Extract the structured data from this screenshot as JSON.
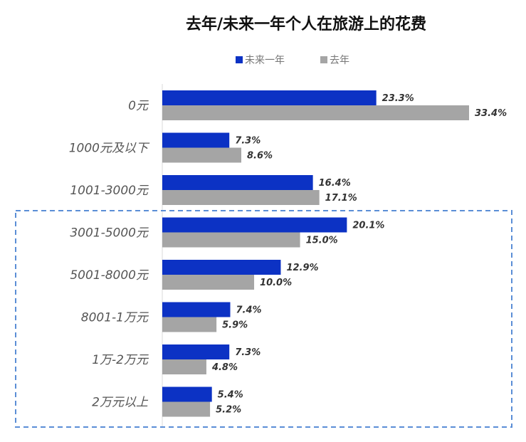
{
  "chart_data": {
    "type": "bar",
    "orientation": "horizontal",
    "title": "去年/未来一年个人在旅游上的花费",
    "categories": [
      "0元",
      "1000元及以下",
      "1001-3000元",
      "3001-5000元",
      "5001-8000元",
      "8001-1万元",
      "1万-2万元",
      "2万元以上"
    ],
    "series": [
      {
        "name": "未来一年",
        "color": "#0c32c4",
        "values": [
          23.3,
          7.3,
          16.4,
          20.1,
          12.9,
          7.4,
          7.3,
          5.4
        ],
        "labels": [
          "23.3%",
          "7.3%",
          "16.4%",
          "20.1%",
          "12.9%",
          "7.4%",
          "7.3%",
          "5.4%"
        ]
      },
      {
        "name": "去年",
        "color": "#a5a5a5",
        "values": [
          33.4,
          8.6,
          17.1,
          15.0,
          10.0,
          5.9,
          4.8,
          5.2
        ],
        "labels": [
          "33.4%",
          "8.6%",
          "17.1%",
          "15.0%",
          "10.0%",
          "5.9%",
          "4.8%",
          "5.2%"
        ]
      }
    ],
    "value_unit": "%",
    "xlim": [
      0,
      36
    ],
    "legend_position": "top-center",
    "grid": false,
    "highlight": {
      "from_category": "3001-5000元",
      "to_category": "2万元以上",
      "style": "dashed",
      "color": "#5b8ed6"
    }
  }
}
